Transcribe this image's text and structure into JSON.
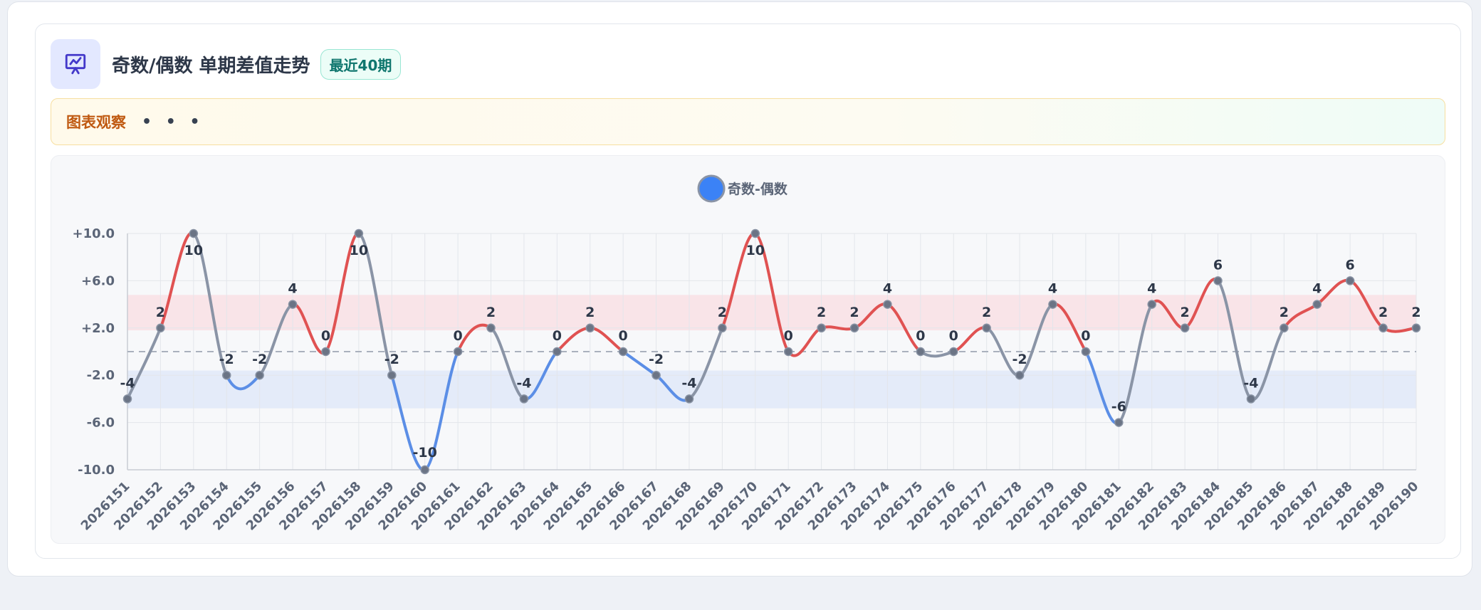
{
  "header": {
    "title": "奇数/偶数 单期差值走势",
    "badge": "最近40期",
    "icon": "presentation-chart-icon"
  },
  "observation": {
    "label": "图表观察",
    "dots": "• • •"
  },
  "colors": {
    "positive": "#e05252",
    "negative": "#5b8ee6",
    "neutral": "#8a94a6",
    "point": "#6b7485",
    "legend_dot": "#3b82f6",
    "band_positive": "#f9dde1",
    "band_negative": "#dde7f8"
  },
  "chart_data": {
    "type": "line",
    "legend": [
      "奇数-偶数"
    ],
    "legend_position": "top-center",
    "x": [
      "2026151",
      "2026152",
      "2026153",
      "2026154",
      "2026155",
      "2026156",
      "2026157",
      "2026158",
      "2026159",
      "2026160",
      "2026161",
      "2026162",
      "2026163",
      "2026164",
      "2026165",
      "2026166",
      "2026167",
      "2026168",
      "2026169",
      "2026170",
      "2026171",
      "2026172",
      "2026173",
      "2026174",
      "2026175",
      "2026176",
      "2026177",
      "2026178",
      "2026179",
      "2026180",
      "2026181",
      "2026182",
      "2026183",
      "2026184",
      "2026185",
      "2026186",
      "2026187",
      "2026188",
      "2026189",
      "2026190"
    ],
    "series": [
      {
        "name": "奇数-偶数",
        "values": [
          -4,
          2,
          10,
          -2,
          -2,
          4,
          0,
          10,
          -2,
          -10,
          0,
          2,
          -4,
          0,
          2,
          0,
          -2,
          -4,
          2,
          10,
          0,
          2,
          2,
          4,
          0,
          0,
          2,
          -2,
          4,
          0,
          -6,
          4,
          2,
          6,
          -4,
          2,
          4,
          6,
          2,
          2
        ]
      }
    ],
    "y_ticks": [
      "+10.0",
      "+6.0",
      "+2.0",
      "-2.0",
      "-6.0",
      "-10.0"
    ],
    "y_tick_values": [
      10,
      6,
      2,
      -2,
      -6,
      -10
    ],
    "ylim": [
      -10,
      10
    ],
    "reference_line": 0,
    "bands": [
      {
        "from": 1.8,
        "to": 4.8,
        "kind": "positive"
      },
      {
        "from": -1.6,
        "to": -4.8,
        "kind": "negative"
      }
    ],
    "grid": true
  }
}
